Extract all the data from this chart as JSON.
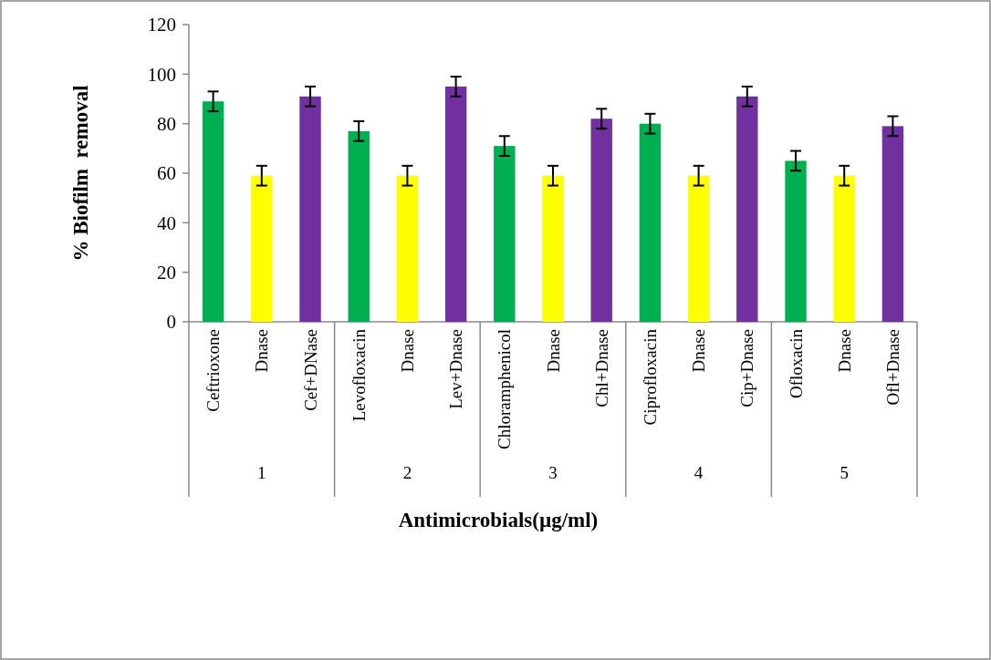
{
  "chart_data": {
    "type": "bar",
    "ylabel": "% Biofilm  removal",
    "xlabel": "Antimicrobials(µg/ml)",
    "categories": [
      "Ceftrioxone",
      "Dnase",
      "Cef+DNase",
      "Levofloxacin",
      "Dnase",
      "Lev+Dnase",
      "Chloramphenicol",
      "Dnase",
      "Chl+Dnase",
      "Ciprofloxacin",
      "Dnase",
      "Cip+Dnase",
      "Ofloxacin",
      "Dnase",
      "Ofl+Dnase"
    ],
    "values": [
      89,
      59,
      91,
      77,
      59,
      95,
      71,
      59,
      82,
      80,
      59,
      91,
      65,
      59,
      79
    ],
    "errors": [
      4,
      4,
      4,
      4,
      4,
      4,
      4,
      4,
      4,
      4,
      4,
      4,
      4,
      4,
      4
    ],
    "colors": [
      "#00b050",
      "#ffff00",
      "#7030a0",
      "#00b050",
      "#ffff00",
      "#7030a0",
      "#00b050",
      "#ffff00",
      "#7030a0",
      "#00b050",
      "#ffff00",
      "#7030a0",
      "#00b050",
      "#ffff00",
      "#7030a0"
    ],
    "ylim": [
      0,
      120
    ],
    "yticks": [
      0,
      20,
      40,
      60,
      80,
      100,
      120
    ],
    "grid": false,
    "annotations": [
      "1",
      "2",
      "3",
      "4",
      "5"
    ]
  }
}
